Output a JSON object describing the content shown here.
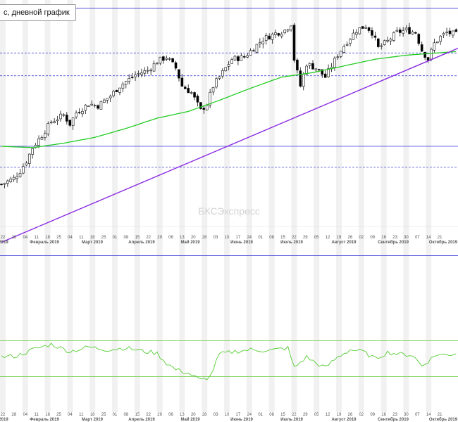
{
  "title": "c, дневной график",
  "watermark": "БКСЭкспресс",
  "colors": {
    "candle_up": "#ffffff",
    "candle_down": "#000000",
    "candle_wick": "#111111",
    "ma": "#22cc22",
    "trendline": "#8a2be2",
    "level_solid": "#3b3bd6",
    "level_dashed": "#4a4ad8",
    "oscillator": "#55cc33",
    "osc_bounds": "#6ccc44",
    "band": "#f1f1f1",
    "watermark": "#d2d2d2"
  },
  "chart_data": {
    "type": "candlestick",
    "x_tick_labels": [
      "22",
      "28",
      "04",
      "11",
      "18",
      "25",
      "04",
      "11",
      "18",
      "25",
      "01",
      "08",
      "15",
      "22",
      "29",
      "06",
      "13",
      "20",
      "28",
      "03",
      "10",
      "17",
      "24",
      "01",
      "08",
      "15",
      "22",
      "29",
      "05",
      "12",
      "19",
      "26",
      "02",
      "09",
      "16",
      "23",
      "30",
      "07",
      "14",
      "21"
    ],
    "month_labels": [
      "2019",
      "Февраль 2019",
      "Март 2019",
      "Апрель 2019",
      "Май 2019",
      "Июнь 2019",
      "Июль 2019",
      "Август 2019",
      "Сентябрь 2019",
      "Октябрь 2019"
    ],
    "day_labels": [
      "22",
      "28",
      "04",
      "11",
      "18",
      "25",
      "04",
      "11",
      "18",
      "25",
      "01",
      "08",
      "15",
      "22",
      "29",
      "06",
      "13",
      "20",
      "28",
      "03",
      "10",
      "17",
      "24",
      "01",
      "08",
      "15",
      "22",
      "29",
      "05",
      "12",
      "19",
      "26",
      "02",
      "09",
      "16",
      "23",
      "30",
      "07",
      "14",
      "21"
    ],
    "y_range": [
      2430,
      3060
    ],
    "levels_solid": [
      3054,
      2745,
      2500
    ],
    "levels_dashed": [
      2954,
      2903,
      2698
    ],
    "close_path": [
      [
        0,
        2660
      ],
      [
        4,
        2673
      ],
      [
        6,
        2690
      ],
      [
        8,
        2712
      ],
      [
        10,
        2742
      ],
      [
        13,
        2770
      ],
      [
        16,
        2800
      ],
      [
        20,
        2815
      ],
      [
        22,
        2795
      ],
      [
        24,
        2820
      ],
      [
        28,
        2840
      ],
      [
        31,
        2836
      ],
      [
        35,
        2858
      ],
      [
        38,
        2880
      ],
      [
        43,
        2905
      ],
      [
        47,
        2915
      ],
      [
        50,
        2935
      ],
      [
        53,
        2945
      ],
      [
        56,
        2920
      ],
      [
        58,
        2880
      ],
      [
        61,
        2865
      ],
      [
        64,
        2825
      ],
      [
        66,
        2840
      ],
      [
        68,
        2880
      ],
      [
        71,
        2910
      ],
      [
        74,
        2940
      ],
      [
        78,
        2945
      ],
      [
        81,
        2965
      ],
      [
        84,
        2985
      ],
      [
        88,
        2998
      ],
      [
        91,
        3005
      ],
      [
        93,
        3020
      ],
      [
        94,
        2940
      ],
      [
        96,
        2880
      ],
      [
        98,
        2930
      ],
      [
        101,
        2920
      ],
      [
        104,
        2900
      ],
      [
        106,
        2925
      ],
      [
        108,
        2950
      ],
      [
        111,
        2980
      ],
      [
        114,
        3005
      ],
      [
        117,
        3015
      ],
      [
        119,
        3000
      ],
      [
        121,
        2965
      ],
      [
        124,
        2980
      ],
      [
        127,
        3000
      ],
      [
        130,
        3005
      ],
      [
        133,
        3000
      ],
      [
        135,
        2960
      ],
      [
        137,
        2940
      ],
      [
        139,
        2975
      ],
      [
        141,
        2990
      ],
      [
        143,
        3000
      ],
      [
        146,
        2995
      ]
    ],
    "ma_path": [
      [
        0,
        2745
      ],
      [
        10,
        2742
      ],
      [
        20,
        2752
      ],
      [
        30,
        2765
      ],
      [
        40,
        2785
      ],
      [
        50,
        2808
      ],
      [
        60,
        2823
      ],
      [
        70,
        2848
      ],
      [
        80,
        2875
      ],
      [
        90,
        2900
      ],
      [
        100,
        2910
      ],
      [
        110,
        2925
      ],
      [
        120,
        2940
      ],
      [
        130,
        2949
      ],
      [
        146,
        2957
      ]
    ],
    "trendline": {
      "from": [
        0,
        2530
      ],
      "to": [
        146,
        2960
      ]
    },
    "oscillator": {
      "range": [
        0,
        100
      ],
      "upper": 70,
      "lower": 30,
      "path": [
        [
          0,
          52
        ],
        [
          5,
          53
        ],
        [
          10,
          60
        ],
        [
          16,
          66
        ],
        [
          22,
          58
        ],
        [
          28,
          63
        ],
        [
          34,
          60
        ],
        [
          40,
          62
        ],
        [
          46,
          58
        ],
        [
          50,
          56
        ],
        [
          53,
          45
        ],
        [
          56,
          38
        ],
        [
          60,
          34
        ],
        [
          64,
          26
        ],
        [
          67,
          30
        ],
        [
          70,
          55
        ],
        [
          75,
          58
        ],
        [
          80,
          60
        ],
        [
          86,
          59
        ],
        [
          92,
          62
        ],
        [
          94,
          40
        ],
        [
          98,
          52
        ],
        [
          101,
          45
        ],
        [
          104,
          40
        ],
        [
          108,
          52
        ],
        [
          112,
          60
        ],
        [
          116,
          58
        ],
        [
          120,
          50
        ],
        [
          124,
          57
        ],
        [
          128,
          55
        ],
        [
          132,
          54
        ],
        [
          135,
          42
        ],
        [
          138,
          50
        ],
        [
          140,
          55
        ],
        [
          143,
          54
        ],
        [
          146,
          56
        ]
      ]
    }
  }
}
